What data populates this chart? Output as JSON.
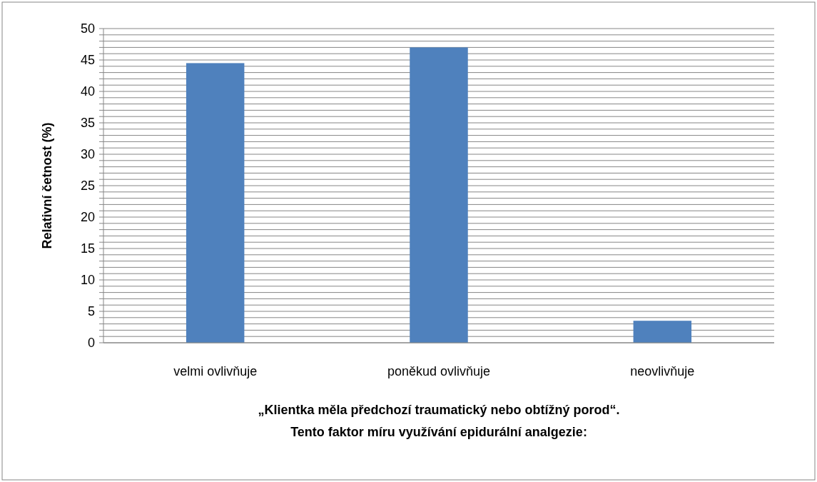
{
  "chart_data": {
    "type": "bar",
    "categories": [
      "velmi ovlivňuje",
      "poněkud ovlivňuje",
      "neovlivňuje"
    ],
    "values": [
      44.5,
      47,
      3.5
    ],
    "color": "#4f81bd",
    "ylabel": "Relativní četnost (%)",
    "xlabel": "„Klientka měla předchozí traumatický nebo obtížný porod“.\nTento faktor míru využívání epidurální analgezie:",
    "ylim": [
      0,
      50
    ],
    "yticks": [
      0,
      {
        "value": 1,
        "label": null
      },
      {
        "value": 2,
        "label": null
      },
      {
        "value": 3,
        "label": null
      },
      {
        "value": 4,
        "label": null
      },
      5,
      {
        "value": 6,
        "label": null
      },
      {
        "value": 7,
        "label": null
      },
      {
        "value": 8,
        "label": null
      },
      {
        "value": 9,
        "label": null
      },
      10,
      {
        "value": 11,
        "label": null
      },
      {
        "value": 12,
        "label": null
      },
      {
        "value": 13,
        "label": null
      },
      {
        "value": 14,
        "label": null
      },
      15,
      {
        "value": 16,
        "label": null
      },
      {
        "value": 17,
        "label": null
      },
      {
        "value": 18,
        "label": null
      },
      {
        "value": 19,
        "label": null
      },
      20,
      {
        "value": 21,
        "label": null
      },
      {
        "value": 22,
        "label": null
      },
      {
        "value": 23,
        "label": null
      },
      {
        "value": 24,
        "label": null
      },
      25,
      {
        "value": 26,
        "label": null
      },
      {
        "value": 27,
        "label": null
      },
      {
        "value": 28,
        "label": null
      },
      {
        "value": 29,
        "label": null
      },
      30,
      {
        "value": 31,
        "label": null
      },
      {
        "value": 32,
        "label": null
      },
      {
        "value": 33,
        "label": null
      },
      {
        "value": 34,
        "label": null
      },
      35,
      {
        "value": 36,
        "label": null
      },
      {
        "value": 37,
        "label": null
      },
      {
        "value": 38,
        "label": null
      },
      {
        "value": 39,
        "label": null
      },
      40,
      {
        "value": 41,
        "label": null
      },
      {
        "value": 42,
        "label": null
      },
      {
        "value": 43,
        "label": null
      },
      {
        "value": 44,
        "label": null
      },
      45,
      {
        "value": 46,
        "label": null
      },
      {
        "value": 47,
        "label": null
      },
      {
        "value": 48,
        "label": null
      },
      {
        "value": 49,
        "label": null
      },
      50
    ],
    "grid": "y"
  }
}
